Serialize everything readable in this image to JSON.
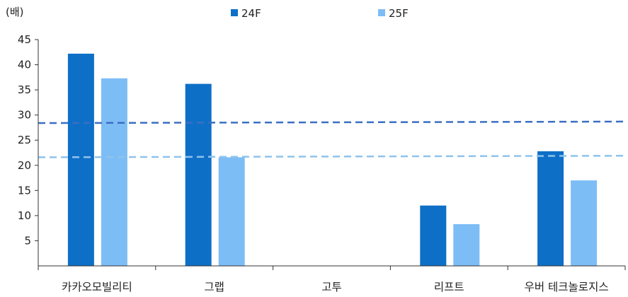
{
  "chart_data": {
    "type": "bar",
    "ylabel": "(배)",
    "categories": [
      "카카오모빌리티",
      "그랩",
      "고투",
      "리프트",
      "우버 테크놀로지스"
    ],
    "series": [
      {
        "name": "24F",
        "values": [
          42.2,
          36.2,
          null,
          12.0,
          22.8
        ],
        "color": "#0e6fc7"
      },
      {
        "name": "25F",
        "values": [
          37.3,
          21.6,
          null,
          8.3,
          17.0
        ],
        "color": "#7dbdf5"
      }
    ],
    "reference_lines": [
      {
        "start": 28.4,
        "end": 28.7,
        "color": "#3a6fc4",
        "style": "dashed"
      },
      {
        "start": 21.6,
        "end": 21.9,
        "color": "#8ec3ec",
        "style": "dashed"
      }
    ],
    "ylim": [
      0,
      45
    ],
    "yticks": [
      5,
      10,
      15,
      20,
      25,
      30,
      35,
      40,
      45
    ],
    "legend_position": "top",
    "grid": false
  }
}
